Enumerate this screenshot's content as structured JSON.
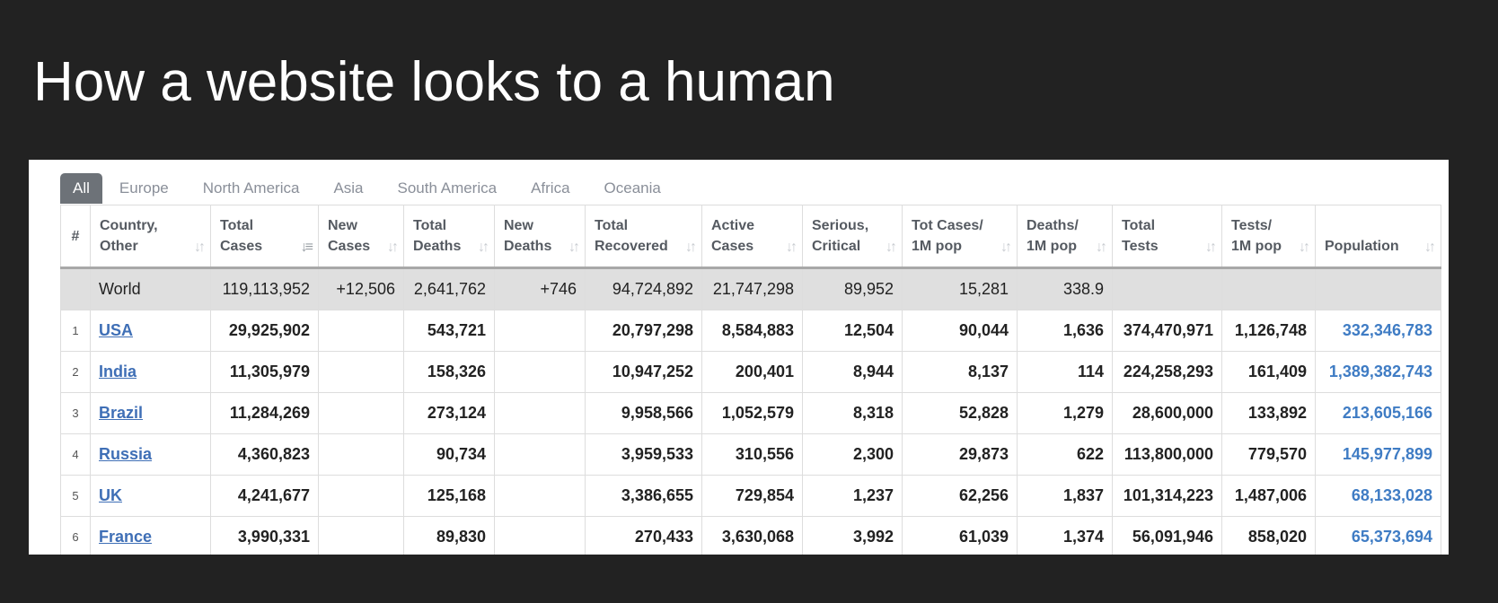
{
  "slide_title": "How a website looks to a human",
  "tabs": [
    "All",
    "Europe",
    "North America",
    "Asia",
    "South America",
    "Africa",
    "Oceania"
  ],
  "columns": [
    {
      "l1": "#",
      "l2": ""
    },
    {
      "l1": "Country,",
      "l2": "Other"
    },
    {
      "l1": "Total",
      "l2": "Cases"
    },
    {
      "l1": "New",
      "l2": "Cases"
    },
    {
      "l1": "Total",
      "l2": "Deaths"
    },
    {
      "l1": "New",
      "l2": "Deaths"
    },
    {
      "l1": "Total",
      "l2": "Recovered"
    },
    {
      "l1": "Active",
      "l2": "Cases"
    },
    {
      "l1": "Serious,",
      "l2": "Critical"
    },
    {
      "l1": "Tot Cases/",
      "l2": "1M pop"
    },
    {
      "l1": "Deaths/",
      "l2": "1M pop"
    },
    {
      "l1": "Total",
      "l2": "Tests"
    },
    {
      "l1": "Tests/",
      "l2": "1M pop"
    },
    {
      "l1": "",
      "l2": "Population"
    }
  ],
  "world": {
    "country": "World",
    "total_cases": "119,113,952",
    "new_cases": "+12,506",
    "total_deaths": "2,641,762",
    "new_deaths": "+746",
    "total_recovered": "94,724,892",
    "active_cases": "21,747,298",
    "serious": "89,952",
    "cases_per_1m": "15,281",
    "deaths_per_1m": "338.9",
    "total_tests": "",
    "tests_per_1m": "",
    "population": ""
  },
  "rows": [
    {
      "idx": "1",
      "country": "USA",
      "total_cases": "29,925,902",
      "new_cases": "",
      "total_deaths": "543,721",
      "new_deaths": "",
      "total_recovered": "20,797,298",
      "active_cases": "8,584,883",
      "serious": "12,504",
      "cases_per_1m": "90,044",
      "deaths_per_1m": "1,636",
      "total_tests": "374,470,971",
      "tests_per_1m": "1,126,748",
      "population": "332,346,783"
    },
    {
      "idx": "2",
      "country": "India",
      "total_cases": "11,305,979",
      "new_cases": "",
      "total_deaths": "158,326",
      "new_deaths": "",
      "total_recovered": "10,947,252",
      "active_cases": "200,401",
      "serious": "8,944",
      "cases_per_1m": "8,137",
      "deaths_per_1m": "114",
      "total_tests": "224,258,293",
      "tests_per_1m": "161,409",
      "population": "1,389,382,743"
    },
    {
      "idx": "3",
      "country": "Brazil",
      "total_cases": "11,284,269",
      "new_cases": "",
      "total_deaths": "273,124",
      "new_deaths": "",
      "total_recovered": "9,958,566",
      "active_cases": "1,052,579",
      "serious": "8,318",
      "cases_per_1m": "52,828",
      "deaths_per_1m": "1,279",
      "total_tests": "28,600,000",
      "tests_per_1m": "133,892",
      "population": "213,605,166"
    },
    {
      "idx": "4",
      "country": "Russia",
      "total_cases": "4,360,823",
      "new_cases": "",
      "total_deaths": "90,734",
      "new_deaths": "",
      "total_recovered": "3,959,533",
      "active_cases": "310,556",
      "serious": "2,300",
      "cases_per_1m": "29,873",
      "deaths_per_1m": "622",
      "total_tests": "113,800,000",
      "tests_per_1m": "779,570",
      "population": "145,977,899"
    },
    {
      "idx": "5",
      "country": "UK",
      "total_cases": "4,241,677",
      "new_cases": "",
      "total_deaths": "125,168",
      "new_deaths": "",
      "total_recovered": "3,386,655",
      "active_cases": "729,854",
      "serious": "1,237",
      "cases_per_1m": "62,256",
      "deaths_per_1m": "1,837",
      "total_tests": "101,314,223",
      "tests_per_1m": "1,487,006",
      "population": "68,133,028"
    },
    {
      "idx": "6",
      "country": "France",
      "total_cases": "3,990,331",
      "new_cases": "",
      "total_deaths": "89,830",
      "new_deaths": "",
      "total_recovered": "270,433",
      "active_cases": "3,630,068",
      "serious": "3,992",
      "cases_per_1m": "61,039",
      "deaths_per_1m": "1,374",
      "total_tests": "56,091,946",
      "tests_per_1m": "858,020",
      "population": "65,373,694"
    }
  ],
  "icons": {
    "sort": "sort-arrows-icon",
    "sort_active": "sort-desc-icon"
  },
  "colors": {
    "link": "#3f6fb6",
    "population": "#3f7cc4",
    "active_tab": "#6d7278",
    "world_row": "#dfdfdf",
    "background": "#222222"
  }
}
